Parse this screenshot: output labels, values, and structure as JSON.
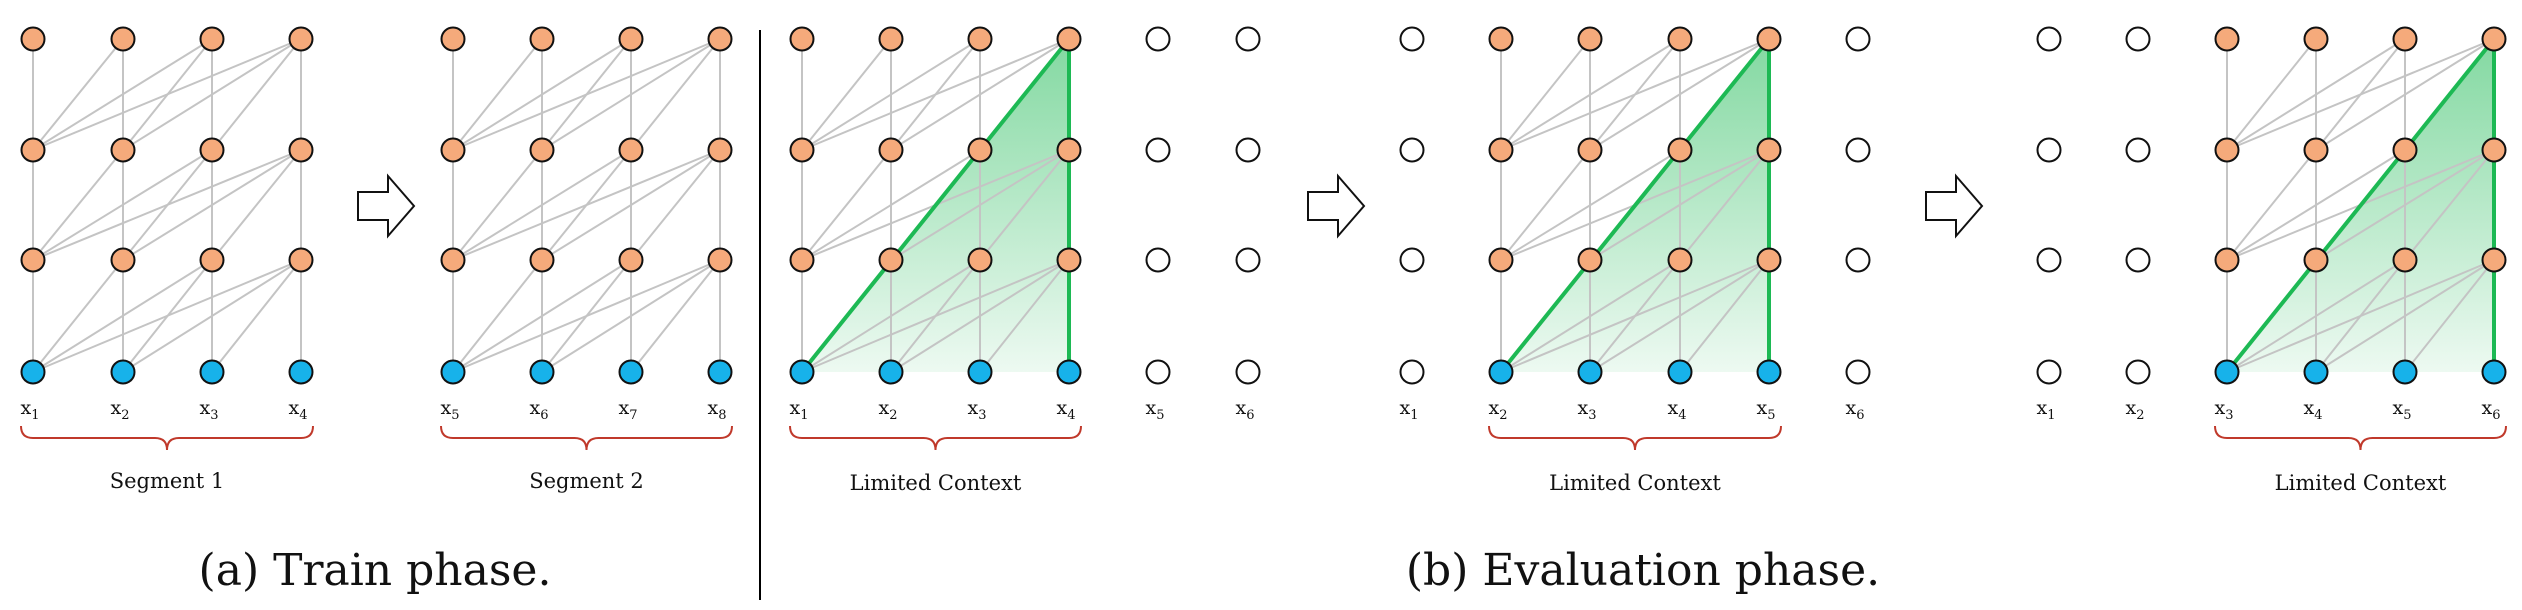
{
  "colors": {
    "hidden_node": "#F5AA7B",
    "input_node": "#17B2EA",
    "empty_node": "#FFFFFF",
    "edge": "#C4C4C4",
    "context": "#1DB954",
    "brace": "#C0392B"
  },
  "train": {
    "caption": "(a) Train phase.",
    "segments": [
      {
        "label": "Segment 1",
        "tokens": [
          [
            "x",
            "1"
          ],
          [
            "x",
            "2"
          ],
          [
            "x",
            "3"
          ],
          [
            "x",
            "4"
          ]
        ]
      },
      {
        "label": "Segment 2",
        "tokens": [
          [
            "x",
            "5"
          ],
          [
            "x",
            "6"
          ],
          [
            "x",
            "7"
          ],
          [
            "x",
            "8"
          ]
        ]
      }
    ]
  },
  "eval": {
    "caption": "(b) Evaluation phase.",
    "steps": [
      {
        "label": "Limited Context",
        "tokens": [
          [
            "x",
            "1"
          ],
          [
            "x",
            "2"
          ],
          [
            "x",
            "3"
          ],
          [
            "x",
            "4"
          ],
          [
            "x",
            "5"
          ],
          [
            "x",
            "6"
          ]
        ],
        "active": [
          0,
          1,
          2,
          3
        ]
      },
      {
        "label": "Limited Context",
        "tokens": [
          [
            "x",
            "1"
          ],
          [
            "x",
            "2"
          ],
          [
            "x",
            "3"
          ],
          [
            "x",
            "4"
          ],
          [
            "x",
            "5"
          ],
          [
            "x",
            "6"
          ]
        ],
        "active": [
          1,
          2,
          3,
          4
        ]
      },
      {
        "label": "Limited Context",
        "tokens": [
          [
            "x",
            "1"
          ],
          [
            "x",
            "2"
          ],
          [
            "x",
            "3"
          ],
          [
            "x",
            "4"
          ],
          [
            "x",
            "5"
          ],
          [
            "x",
            "6"
          ]
        ],
        "active": [
          2,
          3,
          4,
          5
        ]
      }
    ]
  },
  "arrow_icon": "right-arrow-icon"
}
